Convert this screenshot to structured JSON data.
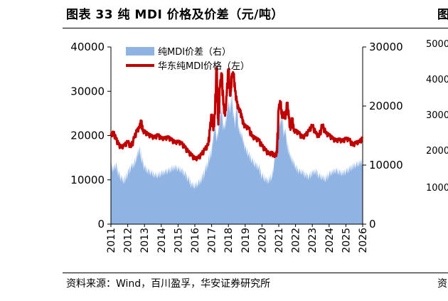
{
  "header": {
    "title": "图表 33 纯 MDI 价格及价差（元/吨）",
    "right_fragment": "图"
  },
  "footer": {
    "source": "资料来源：Wind，百川盈孚，华安证券研究所",
    "right_fragment": "资"
  },
  "neighbor_chart": {
    "tick_labels": [
      "5000",
      "4000",
      "3000",
      "2000",
      "1000"
    ]
  },
  "chart_data": {
    "type": "area+line",
    "title": "纯 MDI 价格及价差（元/吨）",
    "x_range": [
      2011,
      2026
    ],
    "x_tick_labels": [
      "2011",
      "2012",
      "2013",
      "2014",
      "2015",
      "2016",
      "2017",
      "2018",
      "2019",
      "2020",
      "2021",
      "2022",
      "2023",
      "2024",
      "2025",
      "2026"
    ],
    "y_left": {
      "range": [
        0,
        40000
      ],
      "ticks": [
        0,
        10000,
        20000,
        30000,
        40000
      ],
      "tick_labels": [
        "0",
        "10000",
        "20000",
        "30000",
        "40000"
      ]
    },
    "y_right": {
      "range": [
        0,
        30000
      ],
      "ticks": [
        0,
        10000,
        20000,
        30000
      ],
      "tick_labels": [
        "0",
        "10000",
        "20000",
        "30000"
      ]
    },
    "legend_position": "top-left",
    "series": [
      {
        "name": "纯MDI价差（右）",
        "type": "area",
        "axis": "right",
        "color": "#8fb4e3",
        "x": [
          2011.0,
          2011.15,
          2011.3,
          2011.45,
          2011.6,
          2011.8,
          2012.0,
          2012.2,
          2012.4,
          2012.55,
          2012.7,
          2012.85,
          2013.0,
          2013.2,
          2013.4,
          2013.6,
          2013.8,
          2014.0,
          2014.2,
          2014.4,
          2014.6,
          2014.8,
          2015.0,
          2015.2,
          2015.4,
          2015.6,
          2015.8,
          2016.0,
          2016.2,
          2016.4,
          2016.6,
          2016.8,
          2017.0,
          2017.1,
          2017.2,
          2017.3,
          2017.4,
          2017.5,
          2017.6,
          2017.7,
          2017.8,
          2017.9,
          2018.0,
          2018.1,
          2018.2,
          2018.3,
          2018.4,
          2018.5,
          2018.6,
          2018.7,
          2018.8,
          2018.9,
          2019.0,
          2019.2,
          2019.4,
          2019.6,
          2019.8,
          2020.0,
          2020.2,
          2020.4,
          2020.6,
          2020.7,
          2020.8,
          2020.9,
          2021.0,
          2021.1,
          2021.2,
          2021.3,
          2021.4,
          2021.5,
          2021.6,
          2021.7,
          2021.8,
          2021.9,
          2022.0,
          2022.2,
          2022.4,
          2022.6,
          2022.8,
          2023.0,
          2023.2,
          2023.4,
          2023.6,
          2023.8,
          2024.0,
          2024.2,
          2024.4,
          2024.6,
          2024.8,
          2025.0,
          2025.2,
          2025.4,
          2025.6,
          2025.8,
          2026.0
        ],
        "values": [
          9800,
          9300,
          10000,
          8600,
          7800,
          7300,
          8600,
          9700,
          10200,
          11500,
          12700,
          10800,
          9600,
          9000,
          8700,
          8300,
          8200,
          8600,
          8800,
          9000,
          9300,
          9600,
          9400,
          9100,
          8500,
          7700,
          6700,
          6400,
          6900,
          7500,
          9000,
          10500,
          12400,
          14800,
          16700,
          14500,
          15500,
          18300,
          19600,
          16400,
          16600,
          18500,
          20500,
          19300,
          21700,
          18500,
          16800,
          20900,
          16400,
          15500,
          15000,
          13800,
          12800,
          11800,
          10800,
          10100,
          9600,
          8200,
          7600,
          7300,
          8200,
          9600,
          12400,
          15300,
          16500,
          17300,
          18100,
          15300,
          15800,
          13500,
          12200,
          11400,
          10800,
          10300,
          9600,
          9000,
          8800,
          8300,
          8000,
          8700,
          8900,
          8200,
          7900,
          7600,
          8500,
          8800,
          9100,
          8800,
          8600,
          8900,
          9300,
          9700,
          10000,
          10300,
          10500
        ]
      },
      {
        "name": "华东纯MDI价格（左）",
        "type": "line",
        "axis": "left",
        "color": "#c00000",
        "x": [
          2011.0,
          2011.15,
          2011.3,
          2011.45,
          2011.6,
          2011.8,
          2012.0,
          2012.2,
          2012.4,
          2012.55,
          2012.7,
          2012.8,
          2012.9,
          2013.0,
          2013.2,
          2013.4,
          2013.6,
          2013.8,
          2014.0,
          2014.2,
          2014.4,
          2014.6,
          2014.8,
          2015.0,
          2015.2,
          2015.4,
          2015.6,
          2015.8,
          2016.0,
          2016.2,
          2016.4,
          2016.6,
          2016.8,
          2016.9,
          2017.0,
          2017.1,
          2017.2,
          2017.3,
          2017.35,
          2017.4,
          2017.5,
          2017.6,
          2017.7,
          2017.8,
          2017.9,
          2018.0,
          2018.1,
          2018.15,
          2018.2,
          2018.3,
          2018.4,
          2018.5,
          2018.6,
          2018.7,
          2018.8,
          2018.9,
          2019.0,
          2019.2,
          2019.4,
          2019.6,
          2019.8,
          2020.0,
          2020.2,
          2020.4,
          2020.6,
          2020.7,
          2020.8,
          2020.9,
          2021.0,
          2021.1,
          2021.2,
          2021.3,
          2021.4,
          2021.5,
          2021.6,
          2021.7,
          2021.8,
          2021.9,
          2022.0,
          2022.2,
          2022.4,
          2022.6,
          2022.8,
          2023.0,
          2023.2,
          2023.4,
          2023.6,
          2023.8,
          2024.0,
          2024.2,
          2024.4,
          2024.6,
          2024.8,
          2025.0,
          2025.2,
          2025.4,
          2025.6,
          2025.8,
          2026.0
        ],
        "values": [
          20000,
          20600,
          19200,
          18000,
          17300,
          17700,
          18500,
          17400,
          19500,
          21000,
          21700,
          23200,
          21000,
          20800,
          20200,
          19800,
          19500,
          20000,
          19300,
          19300,
          19500,
          19000,
          18400,
          18500,
          18200,
          17300,
          16300,
          15500,
          14700,
          14900,
          15700,
          16800,
          17900,
          21200,
          24700,
          21200,
          24800,
          35300,
          27500,
          22500,
          31000,
          34000,
          27000,
          24500,
          29000,
          35000,
          29000,
          30000,
          33400,
          34000,
          30000,
          27500,
          26000,
          25500,
          24000,
          22500,
          22000,
          21600,
          19800,
          19300,
          18900,
          17600,
          16700,
          15800,
          16000,
          15500,
          15500,
          16200,
          26100,
          27600,
          24000,
          25000,
          23800,
          27400,
          24000,
          21300,
          23800,
          21000,
          21000,
          20500,
          19500,
          20000,
          21000,
          22200,
          20500,
          19700,
          22300,
          20500,
          20000,
          19300,
          18800,
          19000,
          18700,
          19200,
          19000,
          17800,
          18300,
          18500,
          19300
        ]
      }
    ],
    "legend": [
      "纯MDI价差（右）",
      "华东纯MDI价格（左）"
    ]
  }
}
